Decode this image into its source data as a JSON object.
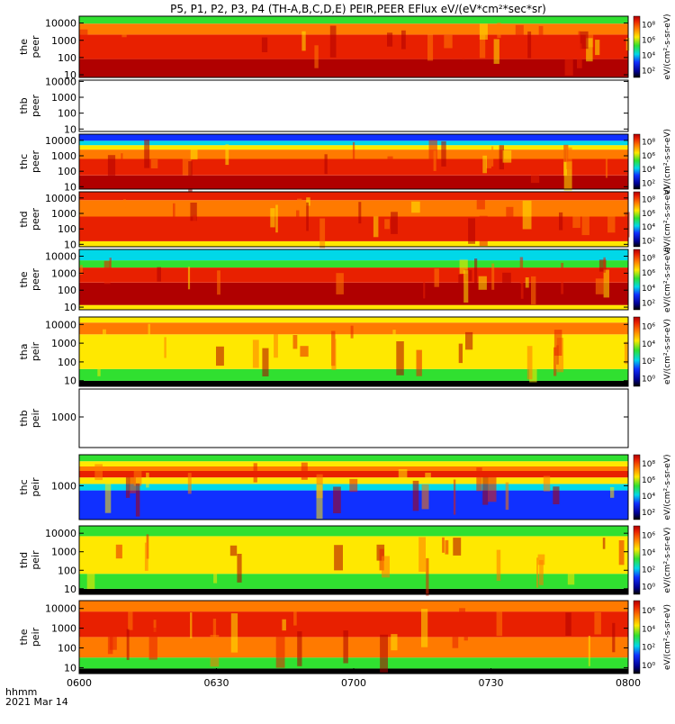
{
  "chart_data": {
    "type": "heatmap",
    "title": "P5, P1, P2, P3, P4 (TH-A,B,C,D,E) PEIR,PEER EFlux eV/(eV*cm²*sec*sr)",
    "time_axis": {
      "ticks": [
        "0600",
        "0630",
        "0700",
        "0730",
        "0800"
      ],
      "corner_label": "hhmm",
      "date": "2021 Mar 14"
    },
    "colorbar_unit": "eV/(cm²-s-sr-eV)",
    "panels": [
      {
        "label": [
          "the",
          "peer"
        ],
        "ylim": [
          7,
          25000
        ],
        "log": true,
        "yticks": [
          "10",
          "100",
          "1000",
          "10000"
        ],
        "cbar_ticks": [
          "10²",
          "10⁴",
          "10⁶",
          "10⁸"
        ],
        "empty": false
      },
      {
        "label": [
          "thb",
          "peer"
        ],
        "ylim": [
          7,
          12000
        ],
        "log": true,
        "yticks": [
          "10",
          "100",
          "1000",
          "10000"
        ],
        "cbar_ticks": [],
        "empty": true
      },
      {
        "label": [
          "thc",
          "peer"
        ],
        "ylim": [
          7,
          25000
        ],
        "log": true,
        "yticks": [
          "10",
          "100",
          "1000",
          "10000"
        ],
        "cbar_ticks": [
          "10²",
          "10⁴",
          "10⁶",
          "10⁸"
        ],
        "empty": false
      },
      {
        "label": [
          "thd",
          "peer"
        ],
        "ylim": [
          7,
          25000
        ],
        "log": true,
        "yticks": [
          "10",
          "100",
          "1000",
          "10000"
        ],
        "cbar_ticks": [
          "10²",
          "10⁴",
          "10⁶",
          "10⁸"
        ],
        "empty": false
      },
      {
        "label": [
          "the",
          "peer"
        ],
        "ylim": [
          7,
          25000
        ],
        "log": true,
        "yticks": [
          "10",
          "100",
          "1000",
          "10000"
        ],
        "cbar_ticks": [
          "10²",
          "10⁴",
          "10⁶",
          "10⁸"
        ],
        "empty": false
      },
      {
        "label": [
          "tha",
          "peir"
        ],
        "ylim": [
          5,
          25000
        ],
        "log": true,
        "yticks": [
          "10",
          "100",
          "1000",
          "10000"
        ],
        "cbar_ticks": [
          "10⁰",
          "10²",
          "10⁴",
          "10⁶"
        ],
        "empty": false
      },
      {
        "label": [
          "thb",
          "peir"
        ],
        "ylim": [
          300,
          3000
        ],
        "log": true,
        "yticks": [
          "1000"
        ],
        "cbar_ticks": [],
        "empty": true
      },
      {
        "label": [
          "thc",
          "peir"
        ],
        "ylim": [
          300,
          3000
        ],
        "log": true,
        "yticks": [
          "1000"
        ],
        "cbar_ticks": [
          "10²",
          "10⁴",
          "10⁶",
          "10⁸"
        ],
        "empty": false
      },
      {
        "label": [
          "thd",
          "peir"
        ],
        "ylim": [
          5,
          25000
        ],
        "log": true,
        "yticks": [
          "10",
          "100",
          "1000",
          "10000"
        ],
        "cbar_ticks": [
          "10⁰",
          "10²",
          "10⁴",
          "10⁶"
        ],
        "empty": false
      },
      {
        "label": [
          "the",
          "peir"
        ],
        "ylim": [
          5,
          25000
        ],
        "log": true,
        "yticks": [
          "10",
          "100",
          "1000",
          "10000"
        ],
        "cbar_ticks": [
          "10⁰",
          "10²",
          "10⁴",
          "10⁶"
        ],
        "empty": false
      }
    ],
    "colors": {
      "dark_red": "#b00000",
      "red": "#e82000",
      "orange": "#ff7a00",
      "yellow": "#ffe800",
      "green": "#30e030",
      "cyan": "#00d8e8",
      "blue": "#1030ff",
      "navy": "#000090",
      "black": "#000000"
    }
  }
}
